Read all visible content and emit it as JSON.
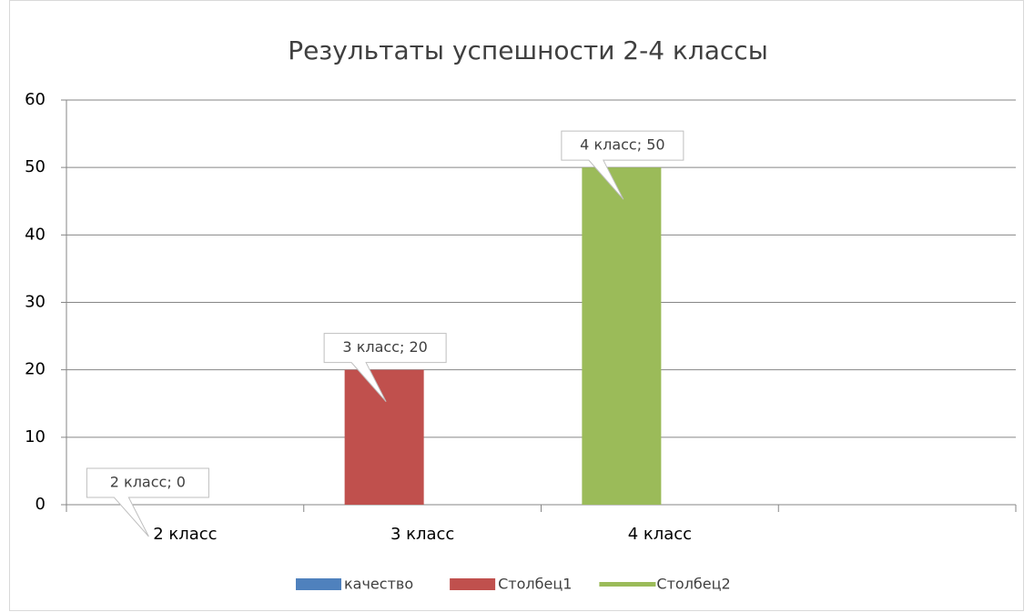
{
  "chart_data": {
    "type": "bar",
    "title": "Результаты успешности 2-4 классы",
    "categories": [
      "2 класс",
      "3 класс",
      "4 класс",
      null
    ],
    "series": [
      {
        "name": "качество",
        "color": "#4f81bd",
        "values": [
          0,
          null,
          null,
          null
        ],
        "value_labels": [
          "2 класс; 0",
          null,
          null,
          null
        ]
      },
      {
        "name": "Столбец1",
        "color": "#c0504d",
        "values": [
          null,
          20,
          null,
          null
        ],
        "value_labels": [
          null,
          "3 класс; 20",
          null,
          null
        ]
      },
      {
        "name": "Столбец2",
        "color": "#9bbb59",
        "values": [
          null,
          null,
          50,
          null
        ],
        "value_labels": [
          null,
          null,
          "4 класс; 50",
          null
        ]
      }
    ],
    "ylim": [
      0,
      60
    ],
    "yticks": [
      0,
      10,
      20,
      30,
      40,
      50,
      60
    ],
    "grid": true,
    "legend": "bottom"
  }
}
